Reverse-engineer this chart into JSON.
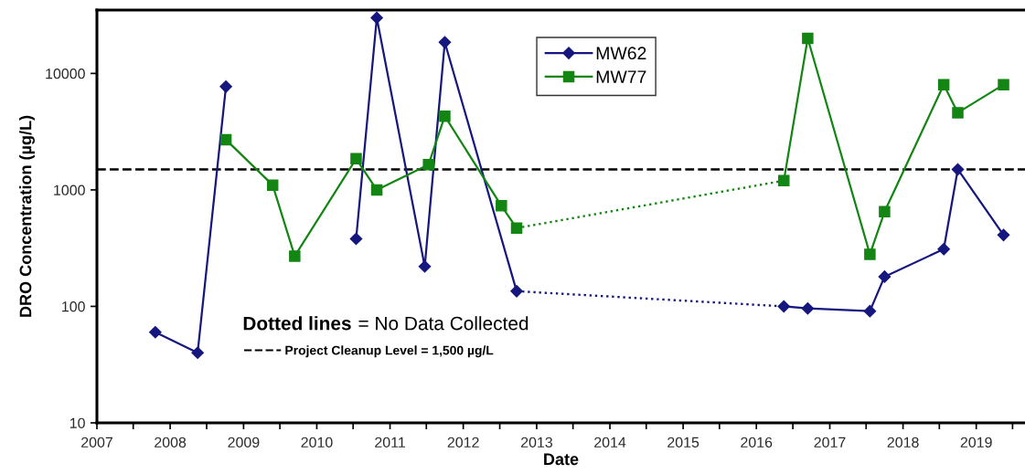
{
  "chart_data": {
    "type": "line",
    "xlabel": "Date",
    "ylabel": "DRO Concentration (µg/L)",
    "xlim": [
      "2007",
      "2019-09"
    ],
    "xticks": [
      {
        "value": "2007",
        "label": "2007"
      },
      {
        "value": "2007-07",
        "label": null
      },
      {
        "value": "2008",
        "label": "2008"
      },
      {
        "value": "2008-07",
        "label": null
      },
      {
        "value": "2009",
        "label": "2009"
      },
      {
        "value": "2009-07",
        "label": null
      },
      {
        "value": "2010",
        "label": "2010"
      },
      {
        "value": "2010-07",
        "label": null
      },
      {
        "value": "2011",
        "label": "2011"
      },
      {
        "value": "2011-07",
        "label": null
      },
      {
        "value": "2012",
        "label": "2012"
      },
      {
        "value": "2012-07",
        "label": null
      },
      {
        "value": "2013",
        "label": "2013"
      },
      {
        "value": "2013-07",
        "label": null
      },
      {
        "value": "2014",
        "label": "2014"
      },
      {
        "value": "2014-07",
        "label": null
      },
      {
        "value": "2015",
        "label": "2015"
      },
      {
        "value": "2015-07",
        "label": null
      },
      {
        "value": "2016",
        "label": "2016"
      },
      {
        "value": "2016-07",
        "label": null
      },
      {
        "value": "2017",
        "label": "2017"
      },
      {
        "value": "2017-07",
        "label": null
      },
      {
        "value": "2018",
        "label": "2018"
      },
      {
        "value": "2018-07",
        "label": null
      },
      {
        "value": "2019",
        "label": "2019"
      },
      {
        "value": "2019-07",
        "label": null
      }
    ],
    "ylim": [
      10,
      35000
    ],
    "yticks": [
      10,
      100,
      1000,
      10000
    ],
    "log": "y",
    "legend": "top",
    "series": [
      {
        "name": "MW62",
        "color": "#16167f",
        "marker": "diamond",
        "line_style": "solid",
        "x": [
          "2007-10-19",
          "2008-05-17",
          "2008-10-05"
        ],
        "values": [
          60,
          40,
          7700
        ]
      },
      {
        "color": "#16167f",
        "marker": "diamond",
        "line_style": "solid",
        "x": [
          "2010-07-16",
          "2010-10-27",
          "2011-06-23",
          "2011-10-01",
          "2012-09-23"
        ],
        "values": [
          380,
          30000,
          220,
          18500,
          135
        ]
      },
      {
        "color": "#16167f",
        "line_style": "dotted",
        "x": [
          "2012-09-23",
          "2016-05-17"
        ],
        "values": [
          135,
          100
        ]
      },
      {
        "color": "#16167f",
        "marker": "diamond",
        "line_style": "solid",
        "x": [
          "2016-05-17",
          "2016-09-13",
          "2017-07-20",
          "2017-10-01",
          "2018-07-23",
          "2018-10-01",
          "2019-05-17"
        ],
        "values": [
          100,
          96,
          91,
          180,
          310,
          1500,
          410
        ]
      },
      {
        "name": "MW77",
        "color": "#138513",
        "marker": "square",
        "line_style": "solid",
        "x": [
          "2008-10-05",
          "2009-05-26",
          "2009-09-13",
          "2010-07-16",
          "2010-10-27",
          "2011-07-12",
          "2011-10-01",
          "2012-07-09",
          "2012-09-23"
        ],
        "values": [
          2700,
          1100,
          270,
          1850,
          1000,
          1650,
          4300,
          730,
          470
        ]
      },
      {
        "color": "#138513",
        "line_style": "dotted",
        "x": [
          "2012-09-23",
          "2016-05-17"
        ],
        "values": [
          470,
          1200
        ]
      },
      {
        "color": "#138513",
        "marker": "square",
        "line_style": "solid",
        "x": [
          "2016-05-17",
          "2016-09-13",
          "2017-07-20",
          "2017-10-01",
          "2018-07-23",
          "2018-10-01",
          "2019-05-17"
        ],
        "values": [
          1200,
          20000,
          280,
          650,
          8000,
          4600,
          8000
        ]
      }
    ],
    "ref_lines": [
      {
        "axis": "y",
        "value": 1500,
        "label": "Project Cleanup Level = 1,500 µg/L",
        "color": "#000000",
        "line_style": "dashed"
      }
    ],
    "annotations": [
      "Dotted lines",
      "= No Data Collected"
    ]
  }
}
